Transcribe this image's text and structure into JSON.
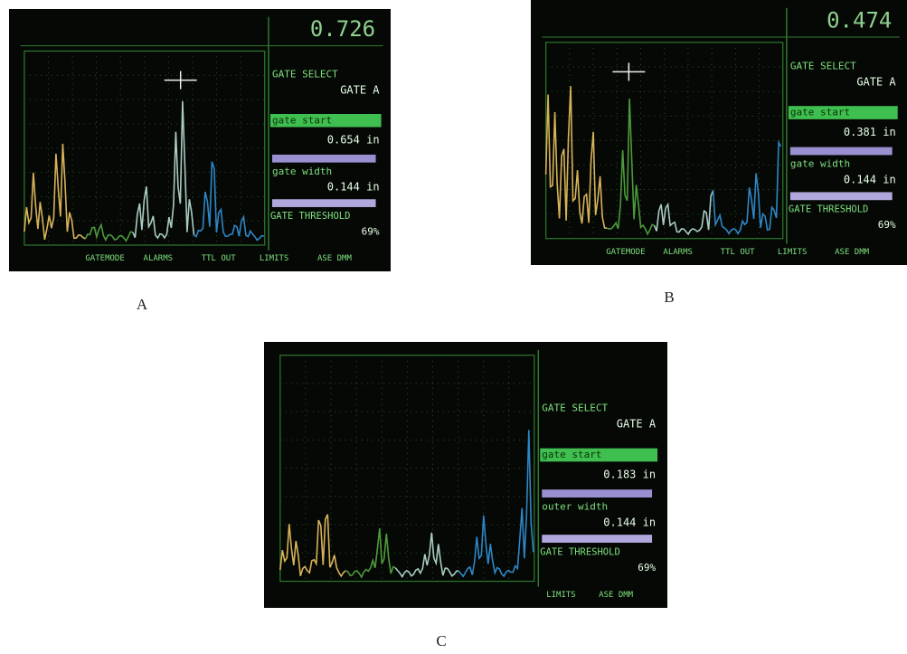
{
  "panels": [
    {
      "label": "A",
      "readout": "0.726",
      "gate_select_title": "GATE SELECT",
      "gate_select_value": "GATE A",
      "gate_start_title": "gate start",
      "gate_start_value": "0.654 in",
      "gate_width_title": "gate width",
      "gate_width_value": "0.144 in",
      "threshold_title": "GATE THRESHOLD",
      "threshold_value": "69%",
      "menu": [
        "GATEMODE",
        "ALARMS",
        "TTL OUT",
        "LIMITS",
        "ASE DMM"
      ]
    },
    {
      "label": "B",
      "readout": "0.474",
      "gate_select_title": "GATE SELECT",
      "gate_select_value": "GATE A",
      "gate_start_title": "gate start",
      "gate_start_value": "0.381 in",
      "gate_width_title": "gate width",
      "gate_width_value": "0.144 in",
      "threshold_title": "GATE THRESHOLD",
      "threshold_value": "69%",
      "menu": [
        "GATEMODE",
        "ALARMS",
        "TTL OUT",
        "LIMITS",
        "ASE DMM"
      ]
    },
    {
      "label": "C",
      "gate_select_title": "GATE SELECT",
      "gate_select_value": "GATE A",
      "gate_start_title": "gate start",
      "gate_start_value": "0.183 in",
      "gate_width_title": "outer width",
      "gate_width_value": "0.144 in",
      "threshold_title": "GATE THRESHOLD",
      "threshold_value": "69%",
      "menu": [
        "LIMITS",
        "ASE DMM"
      ]
    }
  ]
}
